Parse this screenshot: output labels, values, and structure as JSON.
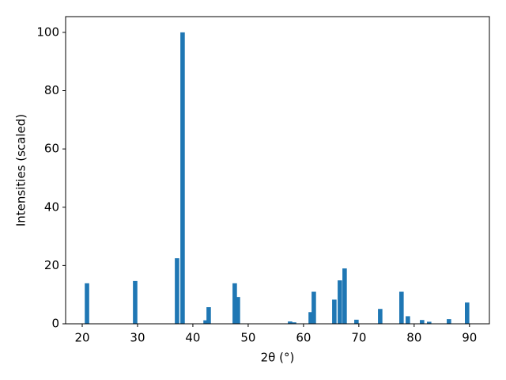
{
  "chart_data": {
    "type": "bar",
    "x_label": "2θ (°)",
    "y_label": "Intensities (scaled)",
    "x": [
      20.86,
      29.57,
      37.14,
      38.14,
      42.3,
      42.86,
      47.57,
      48.14,
      57.57,
      58.3,
      61.3,
      61.86,
      65.57,
      66.57,
      67.43,
      69.57,
      73.86,
      77.71,
      78.86,
      81.43,
      82.71,
      86.29,
      89.57
    ],
    "values": [
      13.9,
      14.7,
      22.5,
      100,
      1.2,
      5.7,
      13.9,
      9.2,
      0.8,
      0.5,
      4,
      11,
      8.3,
      14.9,
      19,
      1.4,
      5.1,
      11,
      2.6,
      1.3,
      0.7,
      1.6,
      7.3
    ],
    "color": "#1f77b4",
    "xlim": [
      17,
      93.6
    ],
    "ylim": [
      0,
      105.4
    ],
    "xticks": [
      20,
      30,
      40,
      50,
      60,
      70,
      80,
      90
    ],
    "yticks": [
      0,
      20,
      40,
      60,
      80,
      100
    ],
    "grid": false
  }
}
